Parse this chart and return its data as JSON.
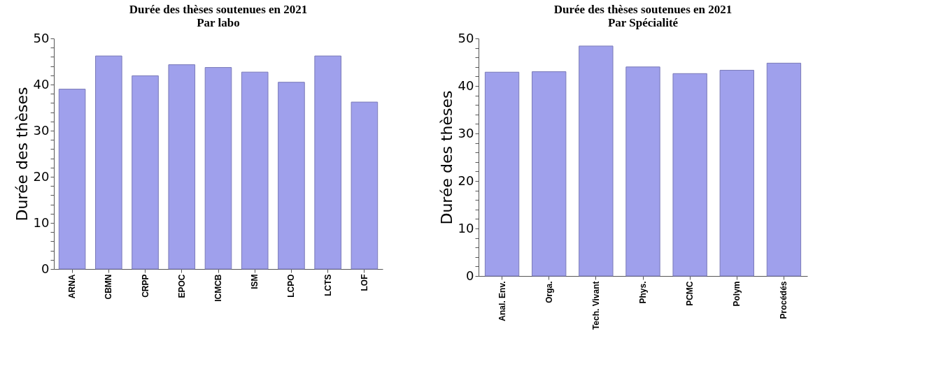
{
  "chart_data": [
    {
      "type": "bar",
      "title": [
        "Durée des thèses soutenues en 2021",
        "Par labo"
      ],
      "ylabel": "Durée des thèses",
      "categories": [
        "ARNA",
        "CBMN",
        "CRPP",
        "EPOC",
        "ICMCB",
        "ISM",
        "LCPO",
        "LCTS",
        "LOF"
      ],
      "values": [
        39.0,
        46.2,
        41.9,
        44.3,
        43.7,
        42.7,
        40.5,
        46.2,
        36.2
      ],
      "color": "#9fa0ec",
      "ylim": [
        0,
        50
      ],
      "yticks": [
        0,
        {
          "value": 2,
          "label": null
        },
        {
          "value": 4,
          "label": null
        },
        {
          "value": 6,
          "label": null
        },
        {
          "value": 8,
          "label": null
        },
        10,
        {
          "value": 12,
          "label": null
        },
        {
          "value": 14,
          "label": null
        },
        {
          "value": 16,
          "label": null
        },
        {
          "value": 18,
          "label": null
        },
        20,
        {
          "value": 22,
          "label": null
        },
        {
          "value": 24,
          "label": null
        },
        {
          "value": 26,
          "label": null
        },
        {
          "value": 28,
          "label": null
        },
        30,
        {
          "value": 32,
          "label": null
        },
        {
          "value": 34,
          "label": null
        },
        {
          "value": 36,
          "label": null
        },
        {
          "value": 38,
          "label": null
        },
        40,
        {
          "value": 42,
          "label": null
        },
        {
          "value": 44,
          "label": null
        },
        {
          "value": 46,
          "label": null
        },
        {
          "value": 48,
          "label": null
        },
        50
      ],
      "grid": false
    },
    {
      "type": "bar",
      "title": [
        "Durée des thèses soutenues en 2021",
        "Par Spécialité"
      ],
      "ylabel": "Durée des thèses",
      "categories": [
        "Anal. Env.",
        "Orga.",
        "Tech. Vivant",
        "Phys.",
        "PCMC",
        "Polym",
        "Procédés"
      ],
      "values": [
        42.9,
        43.0,
        48.4,
        44.0,
        42.6,
        43.3,
        44.8
      ],
      "color": "#9fa0ec",
      "ylim": [
        0,
        50
      ],
      "yticks": [
        0,
        {
          "value": 2,
          "label": null
        },
        {
          "value": 4,
          "label": null
        },
        {
          "value": 6,
          "label": null
        },
        {
          "value": 8,
          "label": null
        },
        10,
        {
          "value": 12,
          "label": null
        },
        {
          "value": 14,
          "label": null
        },
        {
          "value": 16,
          "label": null
        },
        {
          "value": 18,
          "label": null
        },
        20,
        {
          "value": 22,
          "label": null
        },
        {
          "value": 24,
          "label": null
        },
        {
          "value": 26,
          "label": null
        },
        {
          "value": 28,
          "label": null
        },
        30,
        {
          "value": 32,
          "label": null
        },
        {
          "value": 34,
          "label": null
        },
        {
          "value": 36,
          "label": null
        },
        {
          "value": 38,
          "label": null
        },
        40,
        {
          "value": 42,
          "label": null
        },
        {
          "value": 44,
          "label": null
        },
        {
          "value": 46,
          "label": null
        },
        {
          "value": 48,
          "label": null
        },
        50
      ],
      "grid": false
    }
  ]
}
